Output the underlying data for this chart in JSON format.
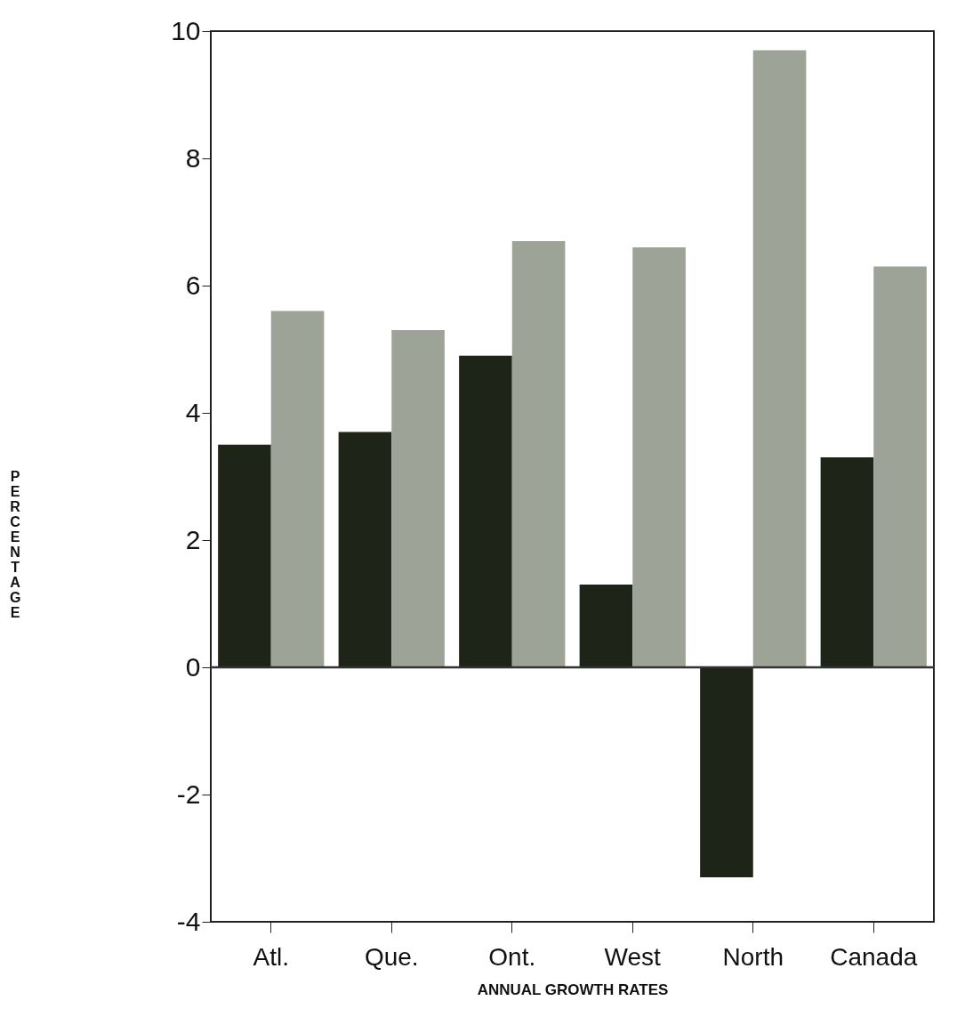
{
  "chart_data": {
    "type": "bar",
    "xlabel": "ANNUAL GROWTH RATES",
    "ylabel": "PERCENTAGE",
    "categories": [
      "Atl.",
      "Que.",
      "Ont.",
      "West",
      "North",
      "Canada"
    ],
    "series": [
      {
        "color": "#1e2418",
        "values": [
          3.5,
          3.7,
          4.9,
          1.3,
          -3.3,
          3.3
        ]
      },
      {
        "color": "#9ea398",
        "values": [
          5.6,
          5.3,
          6.7,
          6.6,
          9.7,
          6.3
        ]
      }
    ],
    "ylim": [
      -4,
      10
    ],
    "yticks": [
      -4,
      -2,
      0,
      2,
      4,
      6,
      8,
      10
    ],
    "ref_lines": [
      {
        "axis": "y",
        "value": 0,
        "color": "#333333"
      }
    ]
  }
}
